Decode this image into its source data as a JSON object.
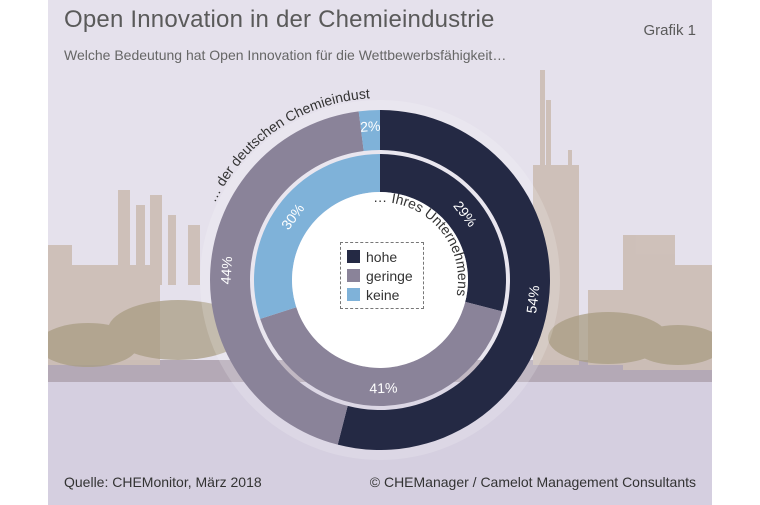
{
  "header": {
    "title": "Open Innovation in der Chemieindustrie",
    "subtitle": "Welche Bedeutung hat Open Innovation für die Wettbewerbsfähigkeit…",
    "figure_label": "Grafik 1"
  },
  "footer": {
    "source": "Quelle: CHEMonitor, März 2018",
    "copyright": "© CHEManager / Camelot Management Consultants"
  },
  "chart_data": {
    "type": "pie",
    "variant": "double-donut",
    "legend": {
      "placement": "center",
      "entries": [
        {
          "label": "hohe",
          "color": "#242944"
        },
        {
          "label": "geringe",
          "color": "#8a8399"
        },
        {
          "label": "keine",
          "color": "#7fb2d9"
        }
      ]
    },
    "rings": [
      {
        "name": "… der deutschen Chemieindustrie",
        "position": "outer",
        "slices": [
          {
            "label": "hohe",
            "value": 54,
            "value_label": "54%",
            "color": "#242944"
          },
          {
            "label": "geringe",
            "value": 44,
            "value_label": "44%",
            "color": "#8a8399"
          },
          {
            "label": "keine",
            "value": 2,
            "value_label": "2%",
            "color": "#7fb2d9"
          }
        ]
      },
      {
        "name": "… Ihres Unternehmens",
        "position": "inner",
        "slices": [
          {
            "label": "hohe",
            "value": 29,
            "value_label": "29%",
            "color": "#242944"
          },
          {
            "label": "geringe",
            "value": 41,
            "value_label": "41%",
            "color": "#8a8399"
          },
          {
            "label": "keine",
            "value": 30,
            "value_label": "30%",
            "color": "#7fb2d9"
          }
        ]
      }
    ]
  }
}
